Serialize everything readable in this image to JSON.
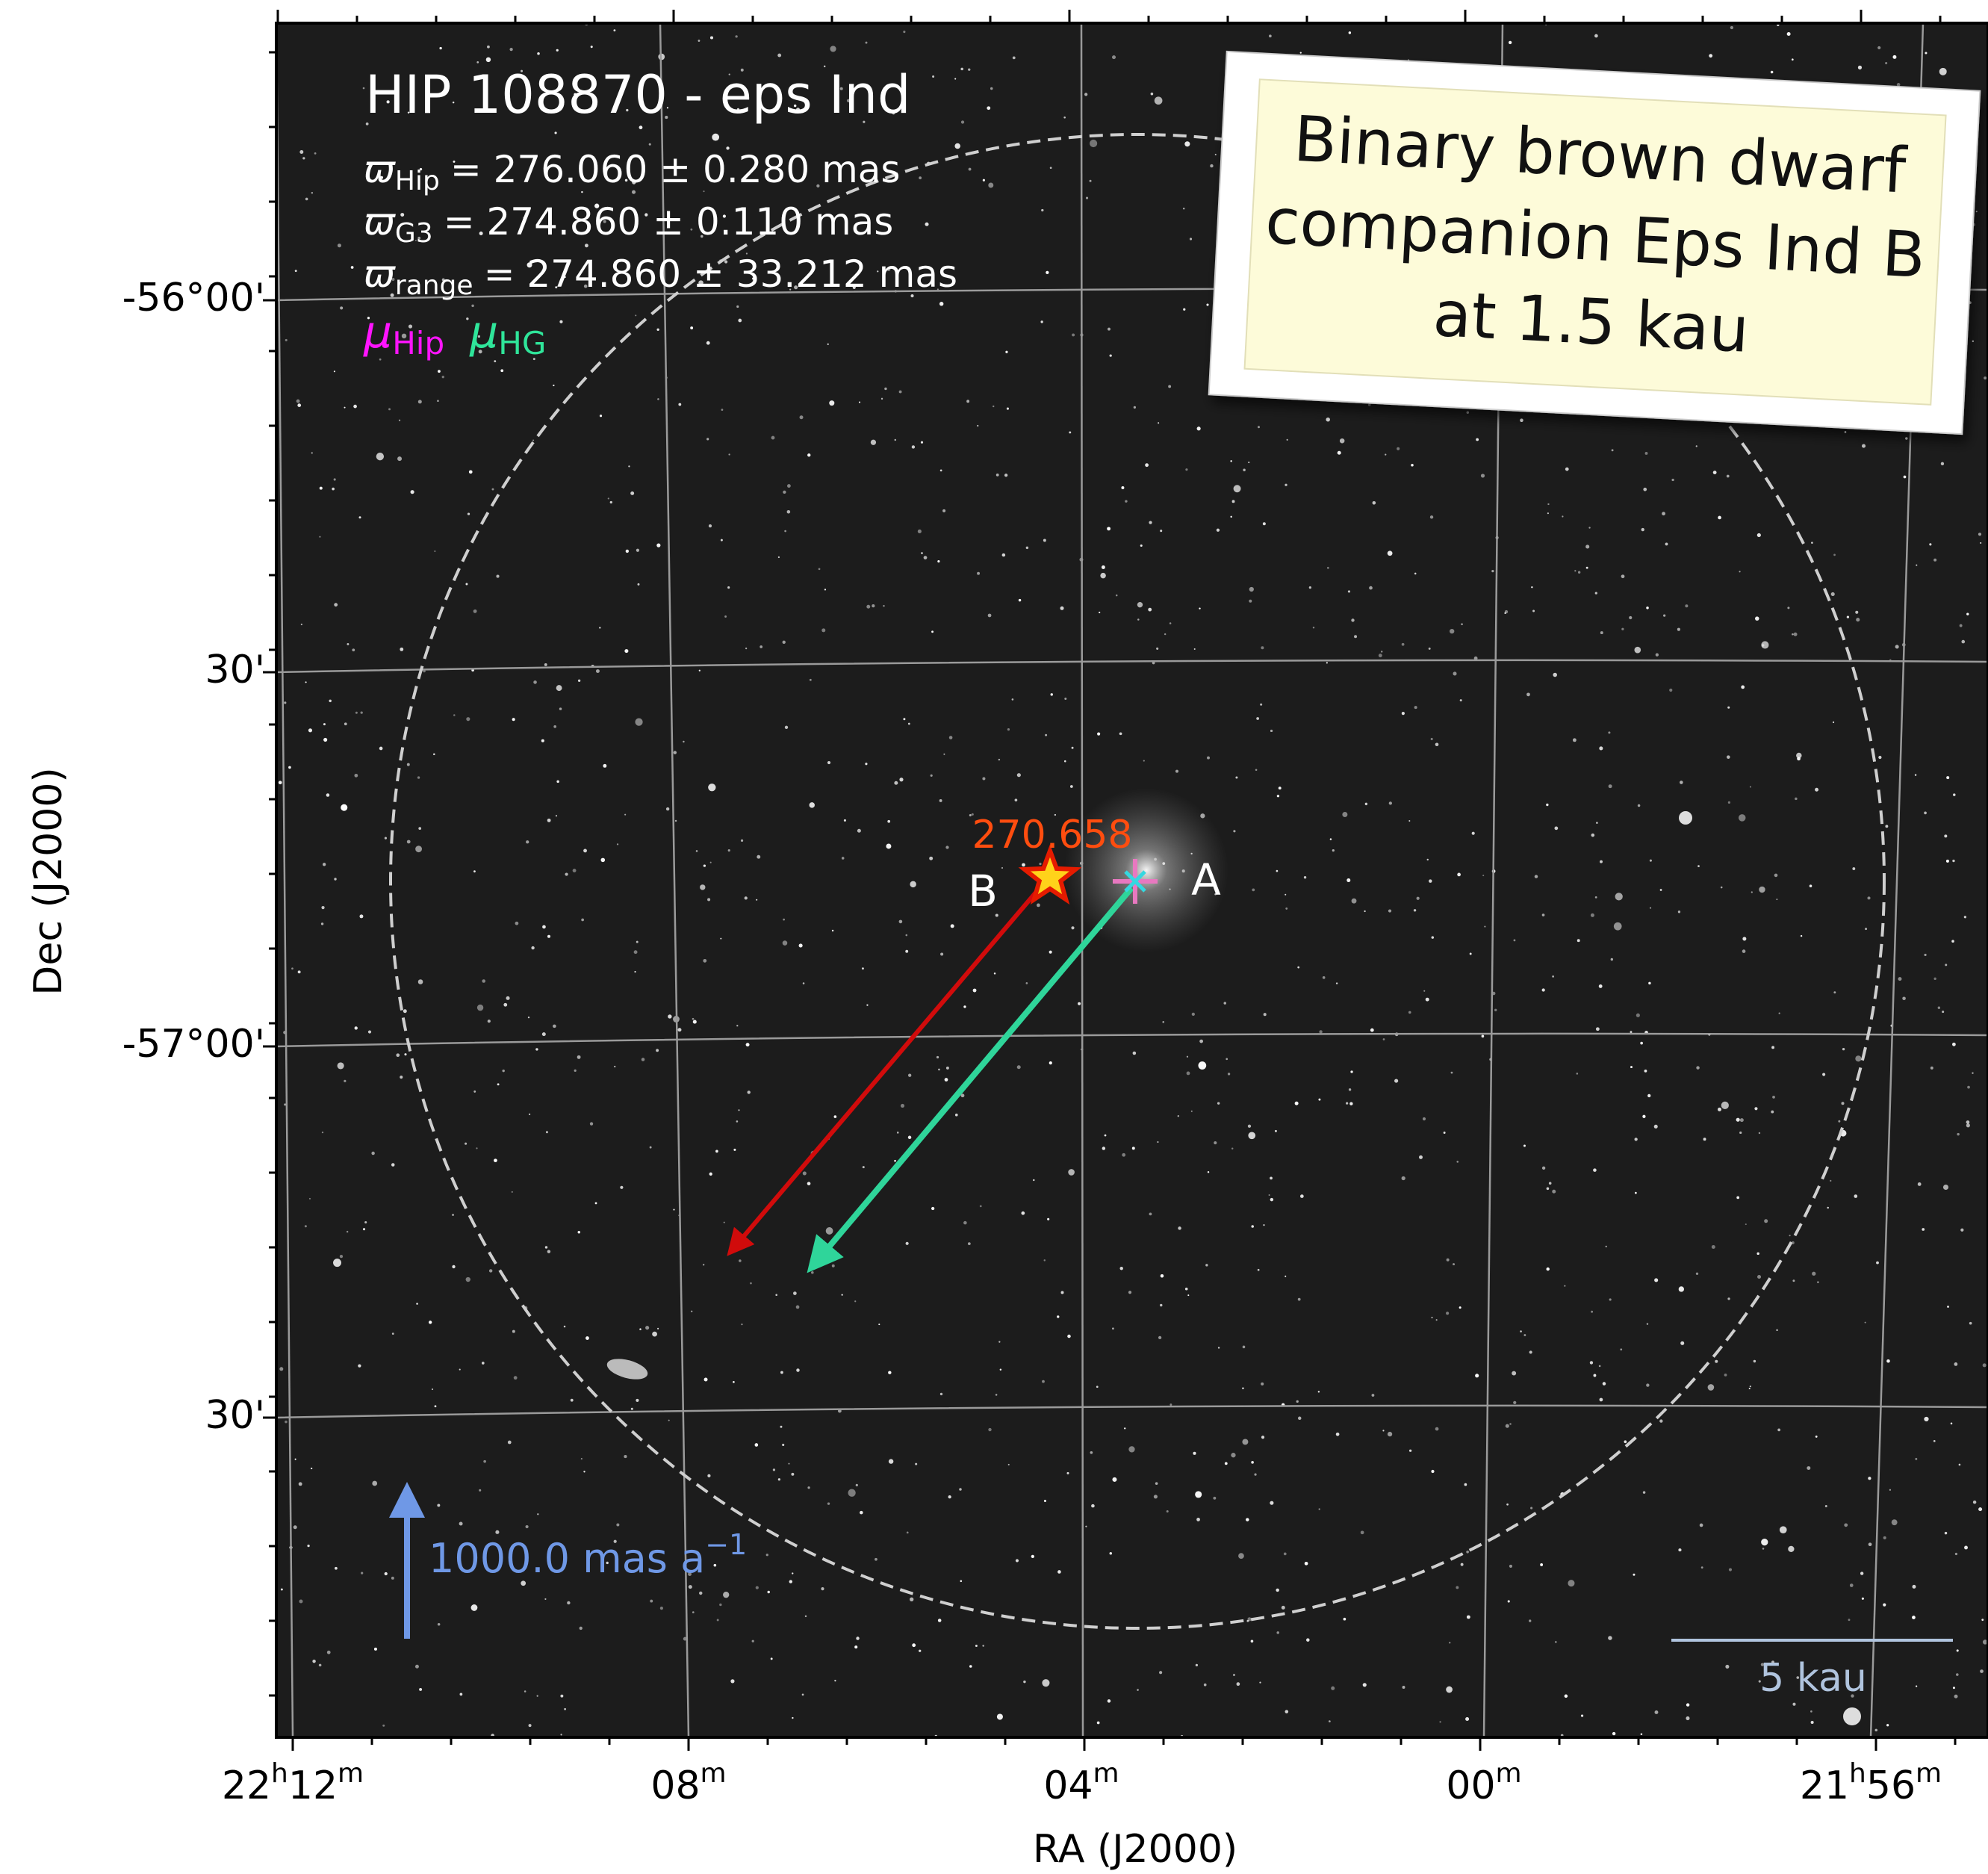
{
  "title": "HIP 108870 - eps Ind",
  "parallaxes": [
    {
      "symbol": "ϖ",
      "sub": "Hip",
      "text": "= 276.060 ± 0.280 mas"
    },
    {
      "symbol": "ϖ",
      "sub": "G3",
      "text": "= 274.860 ± 0.110 mas"
    },
    {
      "symbol": "ϖ",
      "sub": "range",
      "text": "= 274.860 ± 33.212 mas"
    }
  ],
  "proper_motions": [
    {
      "symbol": "μ",
      "sub": "Hip"
    },
    {
      "symbol": "μ",
      "sub": "HG"
    }
  ],
  "note": [
    "Binary brown dwarf",
    "companion Eps Ind B",
    "at 1.5 kau"
  ],
  "companion_parallax": "270.658",
  "labels": {
    "primary": "A",
    "companion": "B"
  },
  "reference_arrow": {
    "text": "1000.0 mas a",
    "exponent": "−1"
  },
  "scale_bar": "5 kau",
  "axes": {
    "x_title": "RA (J2000)",
    "y_title": "Dec (J2000)",
    "hour_unit": "h",
    "minute_unit": "m",
    "x_ticks": [
      {
        "hours": "22",
        "minutes": "12"
      },
      {
        "minutes": "08"
      },
      {
        "minutes": "04"
      },
      {
        "minutes": "00"
      },
      {
        "hours": "21",
        "minutes": "56"
      }
    ],
    "y_ticks": [
      "-56°00'",
      "30'",
      "-57°00'",
      "30'"
    ]
  }
}
